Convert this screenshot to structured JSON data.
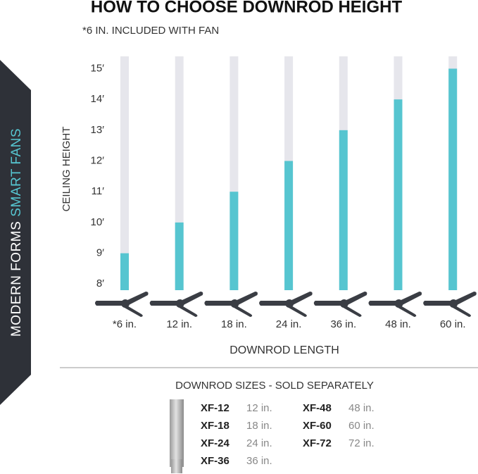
{
  "chart_data": {
    "type": "bar",
    "title": "HOW TO CHOOSE DOWNROD HEIGHT",
    "subtitle": "*6 IN. INCLUDED WITH FAN",
    "xlabel": "DOWNROD LENGTH",
    "ylabel": "CEILING HEIGHT",
    "categories": [
      "*6 in.",
      "12 in.",
      "18 in.",
      "24 in.",
      "36 in.",
      "48 in.",
      "60 in."
    ],
    "values": [
      9,
      10,
      11,
      12,
      13,
      14,
      15
    ],
    "color": "#56c5d0",
    "track_color": "#e6e6ec",
    "ylim": [
      7.8,
      15.4
    ],
    "yticks": [
      {
        "value": 8,
        "label": "8′"
      },
      {
        "value": 9,
        "label": "9′"
      },
      {
        "value": 10,
        "label": "10′"
      },
      {
        "value": 11,
        "label": "11′"
      },
      {
        "value": 12,
        "label": "12′"
      },
      {
        "value": 13,
        "label": "13′"
      },
      {
        "value": 14,
        "label": "14′"
      },
      {
        "value": 15,
        "label": "15′"
      }
    ]
  },
  "brand": {
    "name": "MODERN FORMS",
    "tagline": "SMART FANS"
  },
  "downrod_sizes": {
    "title": "DOWNROD SIZES - SOLD SEPARATELY",
    "items": [
      {
        "code": "XF-12",
        "length": "12 in."
      },
      {
        "code": "XF-18",
        "length": "18 in."
      },
      {
        "code": "XF-24",
        "length": "24 in."
      },
      {
        "code": "XF-36",
        "length": "36 in."
      },
      {
        "code": "XF-48",
        "length": "48 in."
      },
      {
        "code": "XF-60",
        "length": "60 in."
      },
      {
        "code": "XF-72",
        "length": "72 in."
      }
    ]
  }
}
